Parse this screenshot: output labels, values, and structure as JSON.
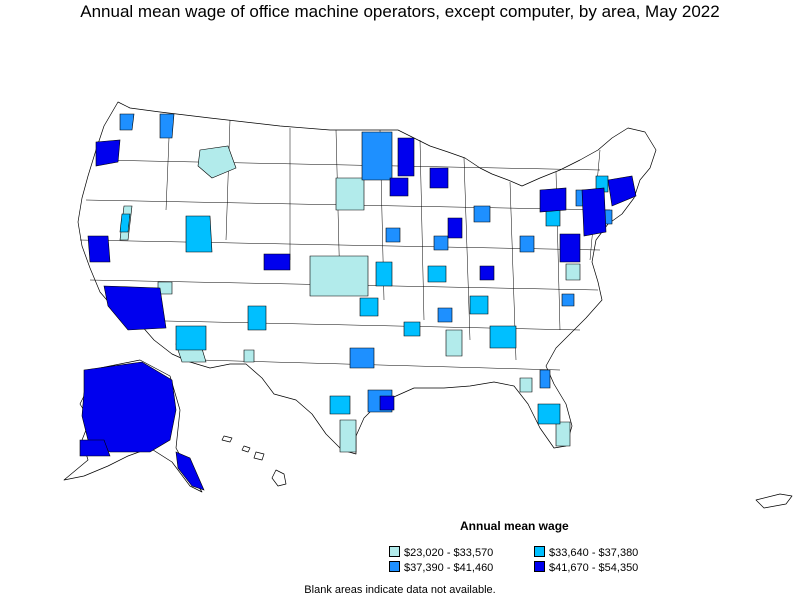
{
  "title": "Annual mean wage of office machine operators, except computer, by area, May 2022",
  "legend": {
    "title": "Annual mean wage",
    "items": [
      {
        "label": "$23,020 - $33,570",
        "color": "#b2ebeb"
      },
      {
        "label": "$33,640 - $37,380",
        "color": "#00bfff"
      },
      {
        "label": "$37,390 - $41,460",
        "color": "#1e90ff"
      },
      {
        "label": "$41,670 - $54,350",
        "color": "#0000ee"
      }
    ]
  },
  "footnote": "Blank areas indicate data not available.",
  "colors": {
    "no_data": "#ffffff",
    "border": "#000000"
  }
}
